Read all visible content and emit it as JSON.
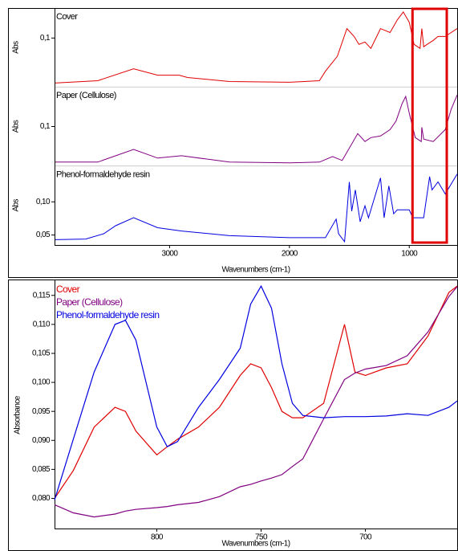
{
  "chart_data": [
    {
      "type": "line",
      "x_label": "Wavenumbers (cm-1)",
      "xlim": [
        3960,
        600
      ],
      "xticks": [
        3000,
        2000,
        1000
      ],
      "highlight": {
        "xlim": [
          973,
          687
        ],
        "color": "#e00000"
      },
      "series": [
        {
          "name": "Cover",
          "y_label": "Abs",
          "color": "#e00000",
          "ylim": [
            0.038,
            0.138
          ],
          "yticks": [
            {
              "value": 0.1,
              "label": "0,1"
            }
          ],
          "x": [
            3960,
            3600,
            3300,
            3100,
            2920,
            2850,
            2500,
            2000,
            1750,
            1700,
            1600,
            1520,
            1460,
            1420,
            1370,
            1320,
            1240,
            1160,
            1100,
            1050,
            1000,
            960,
            910,
            895,
            880,
            850,
            800,
            760,
            700,
            650,
            600
          ],
          "values": [
            0.043,
            0.046,
            0.061,
            0.053,
            0.053,
            0.05,
            0.045,
            0.044,
            0.046,
            0.058,
            0.077,
            0.112,
            0.102,
            0.092,
            0.095,
            0.087,
            0.112,
            0.107,
            0.123,
            0.133,
            0.12,
            0.092,
            0.087,
            0.112,
            0.089,
            0.092,
            0.097,
            0.102,
            0.102,
            0.107,
            0.112
          ]
        },
        {
          "name": "Paper (Cellulose)",
          "y_label": "Abs",
          "color": "#800080",
          "ylim": [
            0.05,
            0.15
          ],
          "yticks": [
            {
              "value": 0.1,
              "label": "0,1"
            }
          ],
          "x": [
            3960,
            3600,
            3300,
            3100,
            2900,
            2500,
            2000,
            1750,
            1640,
            1560,
            1430,
            1370,
            1320,
            1240,
            1160,
            1110,
            1060,
            1030,
            1000,
            950,
            900,
            895,
            880,
            800,
            700,
            650,
            600
          ],
          "values": [
            0.055,
            0.055,
            0.071,
            0.06,
            0.063,
            0.055,
            0.054,
            0.055,
            0.062,
            0.057,
            0.091,
            0.081,
            0.086,
            0.088,
            0.096,
            0.107,
            0.129,
            0.138,
            0.117,
            0.086,
            0.081,
            0.099,
            0.084,
            0.081,
            0.096,
            0.122,
            0.14
          ]
        },
        {
          "name": "Phenol-formaldehyde resin",
          "y_label": "Abs",
          "color": "#0000e0",
          "ylim": [
            0.035,
            0.154
          ],
          "yticks": [
            {
              "value": 0.05,
              "label": "0,05"
            },
            {
              "value": 0.1,
              "label": "0,10"
            }
          ],
          "x": [
            3960,
            3700,
            3550,
            3450,
            3300,
            3100,
            2900,
            2500,
            2000,
            1700,
            1610,
            1590,
            1540,
            1500,
            1480,
            1450,
            1410,
            1370,
            1340,
            1240,
            1210,
            1170,
            1130,
            1100,
            1000,
            970,
            880,
            830,
            810,
            760,
            700,
            600
          ],
          "values": [
            0.043,
            0.044,
            0.052,
            0.064,
            0.076,
            0.061,
            0.056,
            0.049,
            0.046,
            0.046,
            0.074,
            0.052,
            0.04,
            0.13,
            0.086,
            0.118,
            0.07,
            0.094,
            0.076,
            0.136,
            0.076,
            0.124,
            0.082,
            0.088,
            0.088,
            0.076,
            0.076,
            0.138,
            0.118,
            0.13,
            0.112,
            0.142
          ]
        }
      ]
    },
    {
      "type": "line",
      "x_label": "Wavenumbers (cm-1)",
      "y_label": "Absorbance",
      "legend": "upper left",
      "xlim": [
        849,
        656
      ],
      "xticks": [
        800,
        750,
        700
      ],
      "ylim": [
        0.0748,
        0.1176
      ],
      "yticks": [
        {
          "value": 0.08,
          "label": "0,080"
        },
        {
          "value": 0.085,
          "label": "0,085"
        },
        {
          "value": 0.09,
          "label": "0,090"
        },
        {
          "value": 0.095,
          "label": "0,095"
        },
        {
          "value": 0.1,
          "label": "0,100"
        },
        {
          "value": 0.105,
          "label": "0,105"
        },
        {
          "value": 0.11,
          "label": "0,110"
        },
        {
          "value": 0.115,
          "label": "0,115"
        }
      ],
      "x": [
        849,
        840,
        830,
        820,
        815,
        810,
        800,
        795,
        790,
        780,
        770,
        760,
        755,
        750,
        745,
        740,
        735,
        730,
        720,
        710,
        705,
        700,
        690,
        680,
        670,
        660,
        656
      ],
      "series": [
        {
          "name": "Cover",
          "color": "#e00000",
          "values": [
            0.08,
            0.0848,
            0.0923,
            0.0957,
            0.095,
            0.0916,
            0.0875,
            0.0889,
            0.0902,
            0.0923,
            0.0957,
            0.1012,
            0.1032,
            0.1025,
            0.0991,
            0.095,
            0.0939,
            0.0939,
            0.0964,
            0.11,
            0.1018,
            0.1012,
            0.1025,
            0.1032,
            0.108,
            0.1155,
            0.1166
          ]
        },
        {
          "name": "Paper (Cellulose)",
          "color": "#800080",
          "values": [
            0.0789,
            0.0775,
            0.0768,
            0.0773,
            0.0778,
            0.0781,
            0.0784,
            0.0786,
            0.0789,
            0.0793,
            0.0803,
            0.082,
            0.0824,
            0.083,
            0.0835,
            0.0841,
            0.0855,
            0.0868,
            0.0937,
            0.1005,
            0.1016,
            0.1023,
            0.1029,
            0.1046,
            0.1087,
            0.1148,
            0.1165
          ]
        },
        {
          "name": "Phenol-formaldehyde resin",
          "color": "#0000e0",
          "values": [
            0.0797,
            0.0902,
            0.1018,
            0.11,
            0.1107,
            0.1073,
            0.0923,
            0.0889,
            0.0898,
            0.0957,
            0.1005,
            0.1059,
            0.1135,
            0.1166,
            0.1128,
            0.1032,
            0.0964,
            0.0943,
            0.0939,
            0.0941,
            0.0941,
            0.0941,
            0.0942,
            0.0946,
            0.0943,
            0.0957,
            0.0968
          ]
        }
      ]
    }
  ]
}
